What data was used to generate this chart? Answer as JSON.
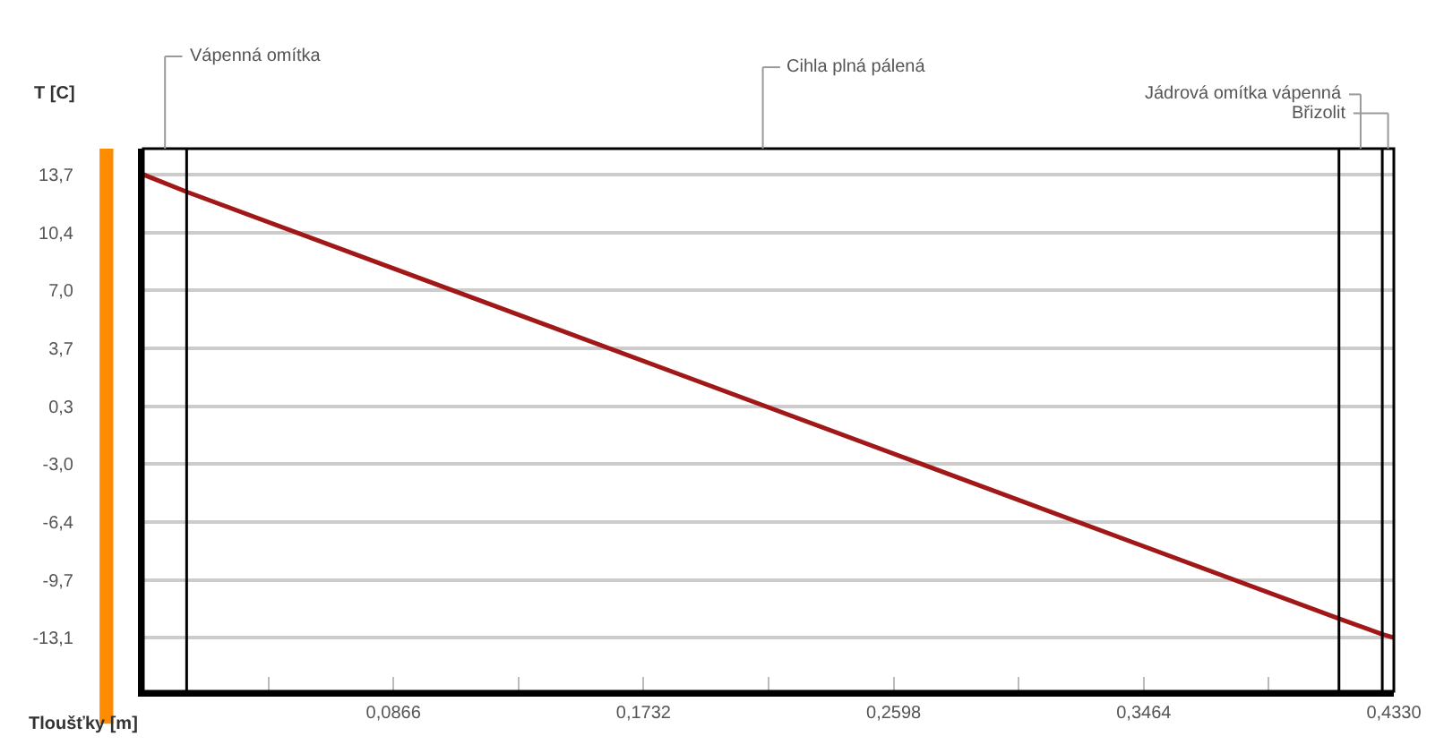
{
  "chart_data": {
    "type": "line",
    "xlabel": "Tloušťky [m]",
    "ylabel": "T [C]",
    "x": [
      0,
      0.015,
      0.414,
      0.429,
      0.433
    ],
    "series": [
      {
        "color": "#a01818",
        "values": [
          13.7,
          12.7,
          -12.0,
          -12.9,
          -13.1
        ]
      }
    ],
    "xlim": [
      0,
      0.433
    ],
    "ylim": [
      -16.2,
      15.2
    ],
    "xticks": [
      {
        "value": 0.0433,
        "label": null
      },
      {
        "value": 0.0866,
        "label": "0,0866"
      },
      {
        "value": 0.1299,
        "label": null
      },
      {
        "value": 0.1732,
        "label": "0,1732"
      },
      {
        "value": 0.2165,
        "label": null
      },
      {
        "value": 0.2598,
        "label": "0,2598"
      },
      {
        "value": 0.3031,
        "label": null
      },
      {
        "value": 0.3464,
        "label": "0,3464"
      },
      {
        "value": 0.3897,
        "label": null
      },
      {
        "value": 0.433,
        "label": "0,4330"
      }
    ],
    "yticks": [
      {
        "value": 13.7,
        "label": "13,7"
      },
      {
        "value": 10.35,
        "label": "10,4"
      },
      {
        "value": 7.0,
        "label": "7,0"
      },
      {
        "value": 3.65,
        "label": "3,7"
      },
      {
        "value": 0.3,
        "label": "0,3"
      },
      {
        "value": -3.05,
        "label": "-3,0"
      },
      {
        "value": -6.4,
        "label": "-6,4"
      },
      {
        "value": -9.75,
        "label": "-9,7"
      },
      {
        "value": -13.1,
        "label": "-13,1"
      }
    ],
    "ref_lines": [
      {
        "axis": "x",
        "value": 0.015,
        "color": "#000000"
      },
      {
        "axis": "x",
        "value": 0.414,
        "color": "#000000"
      },
      {
        "axis": "x",
        "value": 0.429,
        "color": "#000000"
      }
    ],
    "annotations": [
      "Vápenná omítka",
      "Cihla plná pálená",
      "Jádrová omítka vápenná",
      "Břizolit"
    ],
    "grid": "y",
    "marker": "none",
    "line_style": "solid"
  }
}
